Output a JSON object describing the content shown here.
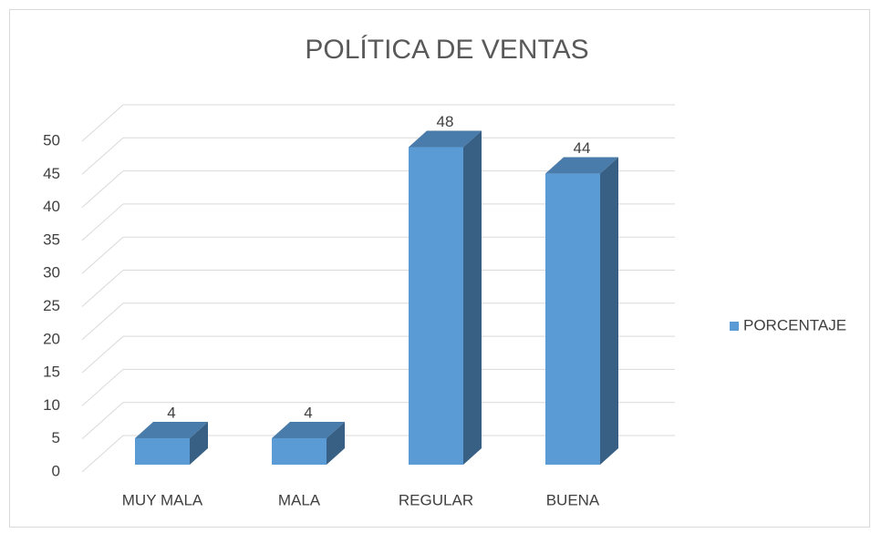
{
  "chart_data": {
    "type": "bar",
    "title": "POLÍTICA DE VENTAS",
    "categories": [
      "MUY MALA",
      "MALA",
      "REGULAR",
      "BUENA"
    ],
    "series": [
      {
        "name": "PORCENTAJE",
        "color": "#5b9bd5",
        "values": [
          4,
          4,
          48,
          44
        ]
      }
    ],
    "ylim": [
      0,
      50
    ],
    "yticks": [
      0,
      5,
      10,
      15,
      20,
      25,
      30,
      35,
      40,
      45,
      50
    ],
    "grid": true,
    "legend": "right"
  }
}
